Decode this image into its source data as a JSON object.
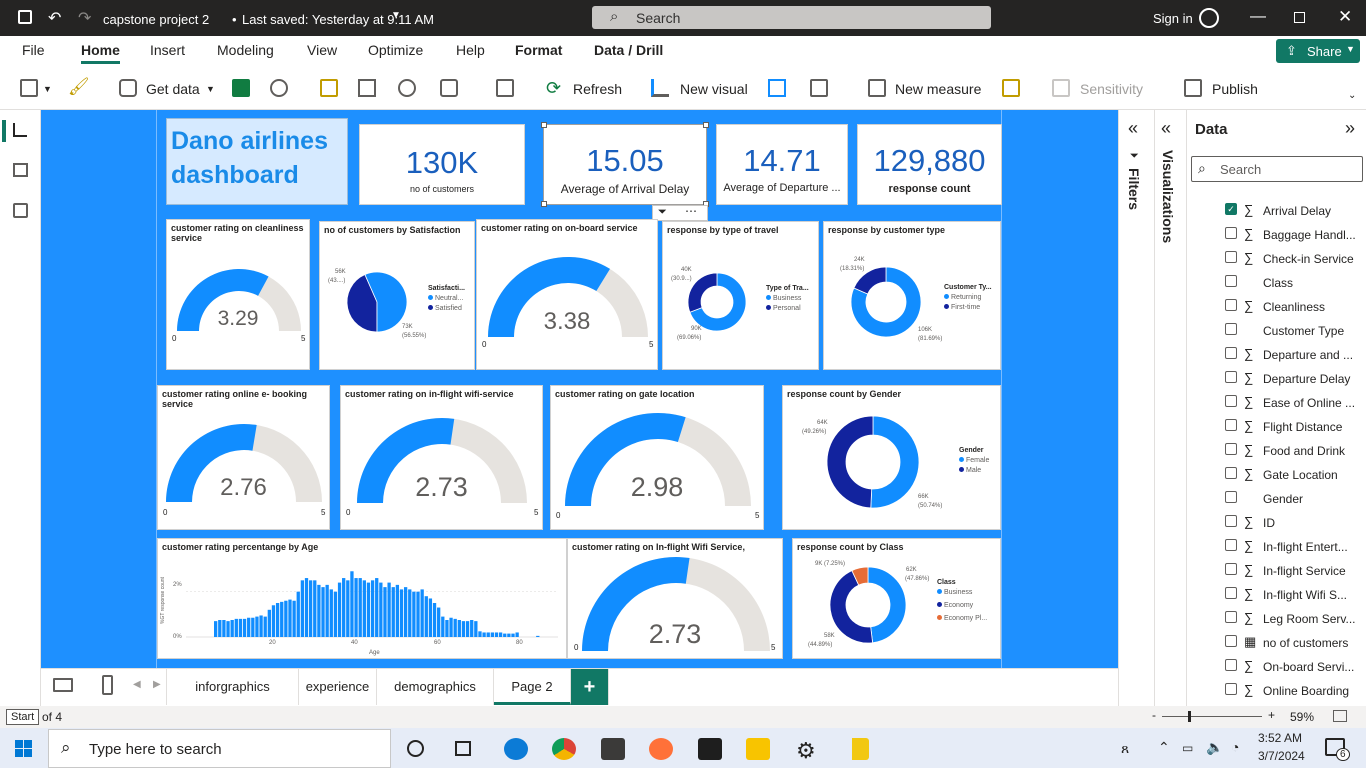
{
  "window": {
    "title": "capstone project 2",
    "saved": "Last saved: Yesterday at 9:11 AM",
    "search_placeholder": "Search",
    "signin": "Sign in"
  },
  "menu": {
    "items": [
      "File",
      "Home",
      "Insert",
      "Modeling",
      "View",
      "Optimize",
      "Help",
      "Format",
      "Data / Drill"
    ],
    "active": "Home",
    "share": "Share"
  },
  "ribbon": {
    "get_data": "Get data",
    "refresh": "Refresh",
    "new_visual": "New visual",
    "new_measure": "New measure",
    "sensitivity": "Sensitivity",
    "publish": "Publish"
  },
  "dashboard": {
    "title": "Dano airlines dashboard",
    "kpis": [
      {
        "value": "130K",
        "label": "no of customers"
      },
      {
        "value": "15.05",
        "label": "Average of Arrival Delay"
      },
      {
        "value": "14.71",
        "label": "Average of Departure ..."
      },
      {
        "value": "129,880",
        "label": "response count"
      }
    ],
    "gauges": [
      {
        "title": "customer rating on cleanliness service",
        "value": "3.29",
        "min": "0",
        "max": "5",
        "fraction": 0.658
      },
      {
        "title": "customer rating on on-board service",
        "value": "3.38",
        "min": "0",
        "max": "5",
        "fraction": 0.676
      },
      {
        "title": "customer rating online e- booking service",
        "value": "2.76",
        "min": "0",
        "max": "5",
        "fraction": 0.552
      },
      {
        "title": "customer rating on in-flight wifi-service",
        "value": "2.73",
        "min": "0",
        "max": "5",
        "fraction": 0.546
      },
      {
        "title": "customer rating on gate location",
        "value": "2.98",
        "min": "0",
        "max": "5",
        "fraction": 0.596
      },
      {
        "title": "customer rating on In-flight Wifi Service,",
        "value": "2.73",
        "min": "0",
        "max": "5",
        "fraction": 0.546
      }
    ],
    "satisfaction": {
      "title": "no of customers by Satisfaction",
      "legend_title": "Satisfacti...",
      "items": [
        "Neutral...",
        "Satisfied"
      ],
      "labels": [
        "56K",
        "(43....)",
        "73K",
        "(56.55%)"
      ]
    },
    "travel": {
      "title": "response by type of travel",
      "legend_title": "Type of Tra...",
      "items": [
        "Business",
        "Personal"
      ],
      "labels": [
        "40K",
        "(30.9...)",
        "90K",
        "(69.06%)"
      ]
    },
    "custtype": {
      "title": "response by customer type",
      "legend_title": "Customer Ty...",
      "items": [
        "Returning",
        "First-time"
      ],
      "labels": [
        "24K",
        "(18.31%)",
        "106K",
        "(81.69%)"
      ]
    },
    "gender": {
      "title": "response count by Gender",
      "legend_title": "Gender",
      "items": [
        "Female",
        "Male"
      ],
      "labels": [
        "64K",
        "(49.26%)",
        "66K",
        "(50.74%)"
      ]
    },
    "class": {
      "title": "response count by Class",
      "legend_title": "Class",
      "items": [
        "Business",
        "Economy",
        "Economy Pl..."
      ],
      "labels": [
        "9K (7.25%)",
        "62K",
        "(47.86%)",
        "58K",
        "(44.89%)"
      ]
    },
    "age": {
      "title": "customer rating percentange by Age",
      "ylabel": "%GT response count",
      "xlabel": "Age",
      "yticks": [
        "2%",
        "0%"
      ],
      "xticks": [
        "20",
        "40",
        "60",
        "80"
      ]
    }
  },
  "colors": {
    "blue": "#118dff",
    "navy": "#12239e",
    "orange": "#e66c37",
    "gray": "#e6e3df"
  },
  "chart_data": [
    {
      "type": "pie",
      "title": "no of customers by Satisfaction",
      "categories": [
        "Neutral...",
        "Satisfied"
      ],
      "values": [
        56,
        73
      ],
      "legend": "right"
    },
    {
      "type": "pie",
      "title": "response by type of travel",
      "categories": [
        "Business",
        "Personal"
      ],
      "values": [
        90,
        40
      ]
    },
    {
      "type": "pie",
      "title": "response by customer type",
      "categories": [
        "Returning",
        "First-time"
      ],
      "values": [
        106,
        24
      ]
    },
    {
      "type": "pie",
      "title": "response count by Gender",
      "categories": [
        "Female",
        "Male"
      ],
      "values": [
        66,
        64
      ]
    },
    {
      "type": "pie",
      "title": "response count by Class",
      "categories": [
        "Business",
        "Economy",
        "Economy Pl..."
      ],
      "values": [
        62,
        58,
        9
      ]
    },
    {
      "type": "bar",
      "title": "customer rating percentange by Age",
      "xlabel": "Age",
      "ylabel": "%GT response count",
      "ylim": [
        0,
        3
      ],
      "x": [
        7,
        8,
        9,
        10,
        11,
        12,
        13,
        14,
        15,
        16,
        17,
        18,
        19,
        20,
        21,
        22,
        23,
        24,
        25,
        26,
        27,
        28,
        29,
        30,
        31,
        32,
        33,
        34,
        35,
        36,
        37,
        38,
        39,
        40,
        41,
        42,
        43,
        44,
        45,
        46,
        47,
        48,
        49,
        50,
        51,
        52,
        53,
        54,
        55,
        56,
        57,
        58,
        59,
        60,
        61,
        62,
        63,
        64,
        65,
        66,
        67,
        68,
        69,
        70,
        71,
        72,
        73,
        74,
        75,
        76,
        77,
        78,
        79,
        80,
        85
      ],
      "values": [
        0.7,
        0.75,
        0.75,
        0.7,
        0.75,
        0.8,
        0.8,
        0.8,
        0.85,
        0.85,
        0.9,
        0.95,
        0.9,
        1.2,
        1.4,
        1.5,
        1.55,
        1.6,
        1.65,
        1.6,
        2.0,
        2.5,
        2.6,
        2.5,
        2.5,
        2.3,
        2.2,
        2.3,
        2.1,
        2.0,
        2.4,
        2.6,
        2.5,
        2.9,
        2.6,
        2.6,
        2.5,
        2.4,
        2.5,
        2.6,
        2.4,
        2.2,
        2.4,
        2.2,
        2.3,
        2.1,
        2.2,
        2.1,
        2.0,
        2.0,
        2.1,
        1.8,
        1.7,
        1.5,
        1.3,
        0.9,
        0.75,
        0.85,
        0.8,
        0.75,
        0.7,
        0.7,
        0.75,
        0.7,
        0.25,
        0.2,
        0.2,
        0.2,
        0.2,
        0.2,
        0.15,
        0.15,
        0.15,
        0.2,
        0.05
      ]
    }
  ],
  "panes": {
    "filters": "Filters",
    "visualizations": "Visualizations",
    "data": "Data",
    "search": "Search",
    "fields": [
      {
        "name": "Arrival Delay",
        "sigma": true,
        "checked": true
      },
      {
        "name": "Baggage Handl...",
        "sigma": true
      },
      {
        "name": "Check-in Service",
        "sigma": true
      },
      {
        "name": "Class",
        "sigma": false
      },
      {
        "name": "Cleanliness",
        "sigma": true
      },
      {
        "name": "Customer Type",
        "sigma": false
      },
      {
        "name": "Departure and ...",
        "sigma": true
      },
      {
        "name": "Departure Delay",
        "sigma": true
      },
      {
        "name": "Ease of Online ...",
        "sigma": true
      },
      {
        "name": "Flight Distance",
        "sigma": true
      },
      {
        "name": "Food and Drink",
        "sigma": true
      },
      {
        "name": "Gate Location",
        "sigma": true
      },
      {
        "name": "Gender",
        "sigma": false
      },
      {
        "name": "ID",
        "sigma": true
      },
      {
        "name": "In-flight Entert...",
        "sigma": true
      },
      {
        "name": "In-flight Service",
        "sigma": true
      },
      {
        "name": "In-flight Wifi S...",
        "sigma": true
      },
      {
        "name": "Leg Room Serv...",
        "sigma": true
      },
      {
        "name": "no of customers",
        "sigma": false,
        "calc": true
      },
      {
        "name": "On-board Servi...",
        "sigma": true
      },
      {
        "name": "Online Boarding",
        "sigma": true
      }
    ]
  },
  "tabs": {
    "items": [
      "inforgraphics",
      "experience",
      "demographics",
      "Page 2"
    ],
    "active": "Page 2",
    "add": "+"
  },
  "status": {
    "page": "of 4",
    "tooltip": "Start",
    "zoom": "59%"
  },
  "taskbar": {
    "search": "Type here to search",
    "time": "3:52 AM",
    "date": "3/7/2024",
    "notif": "6"
  }
}
